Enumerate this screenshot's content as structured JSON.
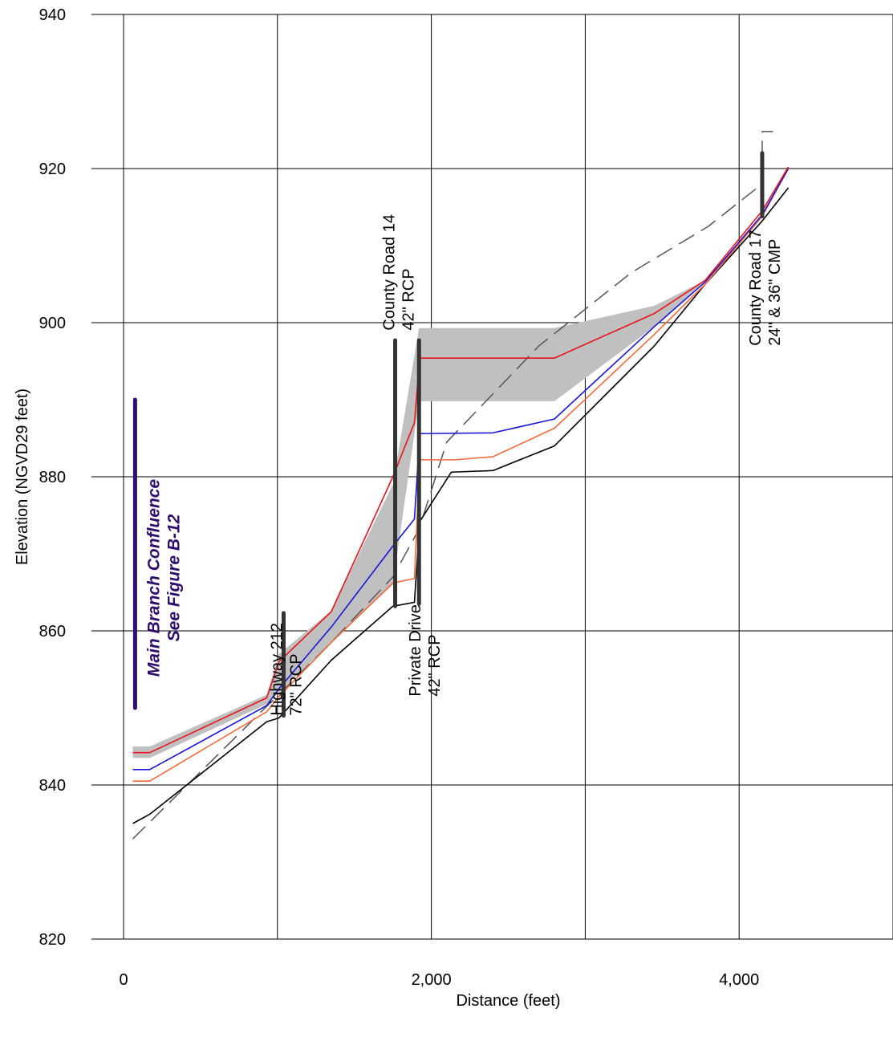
{
  "chart_data": {
    "type": "line",
    "xlabel": "Distance (feet)",
    "ylabel": "Elevation (NGVD29 feet)",
    "xlim": [
      0,
      5000
    ],
    "ylim": [
      820,
      940
    ],
    "x_ticks": [
      0,
      2000,
      4000
    ],
    "x_tick_labels": [
      "0",
      "2,000",
      "4,000"
    ],
    "x_grid": [
      0,
      1000,
      2000,
      3000,
      4000,
      5000
    ],
    "y_ticks": [
      820,
      840,
      860,
      880,
      900,
      920,
      940
    ],
    "y_tick_labels": [
      "820",
      "840",
      "860",
      "880",
      "900",
      "920",
      "940"
    ],
    "grid": true,
    "colors": {
      "band": "#c0c0c0",
      "red": "#e8141a",
      "blue": "#1a16d6",
      "orange": "#f26b3a",
      "black": "#000000",
      "dashed": "#555555",
      "structure": "#333333",
      "note": "#2e0f6e"
    },
    "band": {
      "upper": [
        [
          60,
          845
        ],
        [
          170,
          845
        ],
        [
          930,
          851.7
        ],
        [
          1010,
          857
        ],
        [
          1350,
          862.6
        ],
        [
          1750,
          879
        ],
        [
          1920,
          899.3
        ],
        [
          2800,
          899.3
        ],
        [
          3450,
          902.2
        ],
        [
          3780,
          905.5
        ]
      ],
      "lower": [
        [
          3780,
          905.5
        ],
        [
          3450,
          899.5
        ],
        [
          2800,
          889.8
        ],
        [
          1920,
          889.8
        ],
        [
          1750,
          866
        ],
        [
          1350,
          858.5
        ],
        [
          1010,
          852
        ],
        [
          930,
          850.5
        ],
        [
          170,
          843.5
        ],
        [
          60,
          843.5
        ]
      ]
    },
    "series": [
      {
        "key": "red",
        "points": [
          [
            60,
            844.2
          ],
          [
            170,
            844.2
          ],
          [
            930,
            851.3
          ],
          [
            1010,
            856
          ],
          [
            1350,
            862.5
          ],
          [
            1750,
            880
          ],
          [
            1890,
            887
          ],
          [
            1925,
            895.4
          ],
          [
            2800,
            895.4
          ],
          [
            3450,
            901.2
          ],
          [
            3780,
            905.5
          ],
          [
            4150,
            914.5
          ],
          [
            4320,
            920.2
          ]
        ]
      },
      {
        "key": "blue",
        "points": [
          [
            60,
            842
          ],
          [
            170,
            842
          ],
          [
            930,
            850.3
          ],
          [
            1010,
            852.5
          ],
          [
            1350,
            860.5
          ],
          [
            1750,
            871
          ],
          [
            1890,
            874.5
          ],
          [
            1925,
            885.6
          ],
          [
            2400,
            885.7
          ],
          [
            2800,
            887.5
          ],
          [
            3450,
            899.5
          ],
          [
            3780,
            905.3
          ],
          [
            4150,
            914
          ],
          [
            4320,
            920
          ]
        ]
      },
      {
        "key": "orange",
        "points": [
          [
            60,
            840.5
          ],
          [
            170,
            840.5
          ],
          [
            930,
            849.5
          ],
          [
            1010,
            851.5
          ],
          [
            1350,
            858.5
          ],
          [
            1750,
            866.2
          ],
          [
            1890,
            866.8
          ],
          [
            1925,
            882.2
          ],
          [
            2150,
            882.2
          ],
          [
            2400,
            882.6
          ],
          [
            2800,
            886.3
          ],
          [
            3450,
            898.5
          ],
          [
            3780,
            905
          ],
          [
            4150,
            913.8
          ],
          [
            4320,
            920
          ]
        ]
      },
      {
        "key": "black",
        "points": [
          [
            60,
            835
          ],
          [
            170,
            836.2
          ],
          [
            930,
            848.2
          ],
          [
            1010,
            848.7
          ],
          [
            1350,
            856.2
          ],
          [
            1750,
            863.2
          ],
          [
            1890,
            863.7
          ],
          [
            1925,
            874.2
          ],
          [
            2130,
            880.6
          ],
          [
            2400,
            880.8
          ],
          [
            2800,
            884
          ],
          [
            3450,
            897
          ],
          [
            3780,
            905
          ],
          [
            4150,
            913.2
          ],
          [
            4320,
            917.5
          ]
        ]
      },
      {
        "key": "dashed",
        "points": [
          [
            60,
            833
          ],
          [
            1350,
            858.5
          ],
          [
            1750,
            867
          ],
          [
            1920,
            873.2
          ],
          [
            2100,
            884.5
          ],
          [
            2700,
            897
          ],
          [
            3300,
            906.5
          ],
          [
            3800,
            912.5
          ],
          [
            4150,
            918
          ],
          [
            4150,
            924.8
          ],
          [
            4220,
            924.8
          ]
        ]
      }
    ],
    "structures": [
      {
        "x": 1040,
        "y_bottom": 849,
        "y_top": 862.3
      },
      {
        "x": 1765,
        "y_bottom": 863.2,
        "y_top": 897.7
      },
      {
        "x": 1920,
        "y_bottom": 863.5,
        "y_top": 897.7
      },
      {
        "x": 4150,
        "y_bottom": 913.8,
        "y_top": 922
      }
    ],
    "annotations": [
      {
        "lines": [
          "Highway 212",
          "72\" RCP"
        ],
        "x": 1030,
        "y": 849
      },
      {
        "lines": [
          "County Road 14",
          "42\" RCP"
        ],
        "x": 1760,
        "y": 899
      },
      {
        "lines": [
          "Private Drive",
          "42\" RCP"
        ],
        "x": 1930,
        "y": 851.5
      },
      {
        "lines": [
          "County Road 17",
          "24\" & 36\" CMP"
        ],
        "x": 4140,
        "y": 897
      }
    ],
    "confluence": {
      "lines": [
        "Main Branch Confluence",
        "See Figure B-12"
      ],
      "x": 75,
      "y_bottom": 850,
      "y_top": 890
    }
  }
}
